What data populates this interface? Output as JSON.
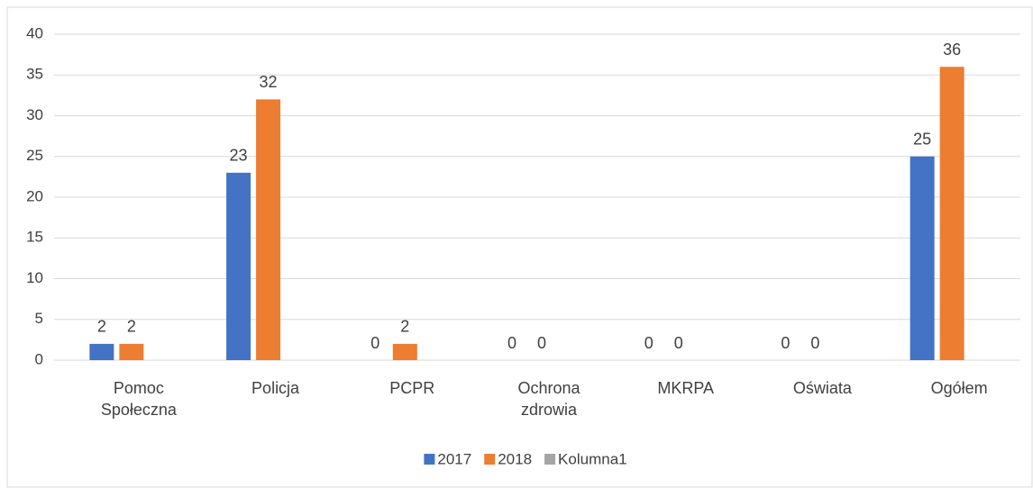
{
  "chart_data": {
    "type": "bar",
    "categories": [
      "Pomoc Społeczna",
      "Policja",
      "PCPR",
      "Ochrona zdrowia",
      "MKRPA",
      "Oświata",
      "Ogółem"
    ],
    "series": [
      {
        "name": "2017",
        "color": "#4472c4",
        "values": [
          2,
          23,
          0,
          0,
          0,
          0,
          25
        ]
      },
      {
        "name": "2018",
        "color": "#ed7d31",
        "values": [
          2,
          32,
          2,
          0,
          0,
          0,
          36
        ]
      },
      {
        "name": "Kolumna1",
        "color": "#a5a5a5",
        "values": [
          null,
          null,
          null,
          null,
          null,
          null,
          null
        ]
      }
    ],
    "ylim": [
      0,
      40
    ],
    "yticks": [
      0,
      5,
      10,
      15,
      20,
      25,
      30,
      35,
      40
    ],
    "grid": true,
    "legend": "bottom"
  }
}
